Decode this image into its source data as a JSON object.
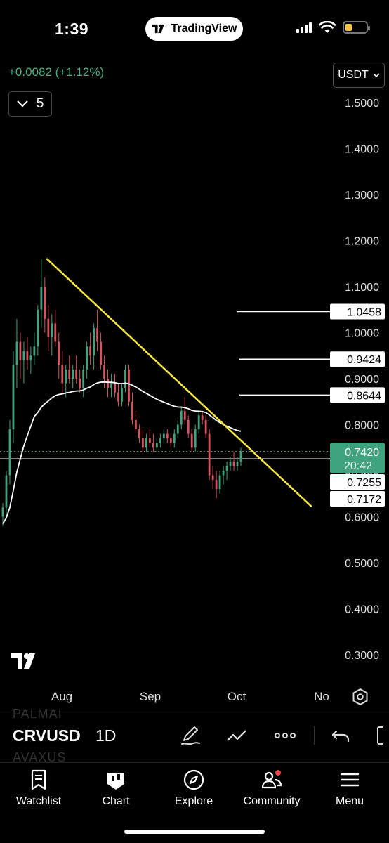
{
  "status_bar": {
    "time": "1:39",
    "app_pill": "TradingView"
  },
  "header": {
    "change_text": "+0.0082 (+1.12%)",
    "indicator_count": "5",
    "currency": "USDT"
  },
  "chart_data": {
    "type": "candlestick",
    "symbol": "CRVUSDT",
    "interval": "1D",
    "y_ticks": [
      "1.5000",
      "1.4000",
      "1.3000",
      "1.2000",
      "1.1000",
      "1.0000",
      "0.9000",
      "0.8000",
      "0.7000",
      "0.6000",
      "0.5000",
      "0.4000",
      "0.3000"
    ],
    "y_range": [
      0.3,
      1.5
    ],
    "x_ticks": [
      "Aug",
      "Sep",
      "Oct",
      "No"
    ],
    "current_price": "0.7420",
    "countdown": "20:42",
    "price_labels": [
      "1.0458",
      "0.9424",
      "0.8644",
      "0.7255",
      "0.7172"
    ],
    "horizontal_levels": [
      1.0458,
      0.9424,
      0.8644,
      0.7255
    ],
    "trendline": {
      "from": {
        "date": "2023-07-30",
        "price": 1.16
      },
      "to": {
        "date": "2023-10-15",
        "price": 0.623
      }
    },
    "moving_average_color": "#ffffff",
    "trendline_color": "#f5e642",
    "up_color": "#3fa37d",
    "down_color": "#d9525e",
    "candles": [
      {
        "o": 0.6,
        "h": 0.63,
        "l": 0.58,
        "c": 0.62
      },
      {
        "o": 0.62,
        "h": 0.7,
        "l": 0.6,
        "c": 0.69
      },
      {
        "o": 0.69,
        "h": 0.81,
        "l": 0.67,
        "c": 0.79
      },
      {
        "o": 0.79,
        "h": 0.96,
        "l": 0.76,
        "c": 0.93
      },
      {
        "o": 0.93,
        "h": 1.03,
        "l": 0.88,
        "c": 0.98
      },
      {
        "o": 0.98,
        "h": 1.0,
        "l": 0.9,
        "c": 0.94
      },
      {
        "o": 0.94,
        "h": 0.98,
        "l": 0.89,
        "c": 0.96
      },
      {
        "o": 0.96,
        "h": 0.99,
        "l": 0.92,
        "c": 0.94
      },
      {
        "o": 0.94,
        "h": 0.97,
        "l": 0.91,
        "c": 0.95
      },
      {
        "o": 0.95,
        "h": 1.0,
        "l": 0.93,
        "c": 0.97
      },
      {
        "o": 0.97,
        "h": 1.06,
        "l": 0.95,
        "c": 1.05
      },
      {
        "o": 1.05,
        "h": 1.16,
        "l": 1.01,
        "c": 1.1
      },
      {
        "o": 1.1,
        "h": 1.12,
        "l": 1.0,
        "c": 1.03
      },
      {
        "o": 1.03,
        "h": 1.06,
        "l": 0.96,
        "c": 0.99
      },
      {
        "o": 0.99,
        "h": 1.04,
        "l": 0.95,
        "c": 1.02
      },
      {
        "o": 1.02,
        "h": 1.05,
        "l": 0.97,
        "c": 0.98
      },
      {
        "o": 0.98,
        "h": 1.0,
        "l": 0.9,
        "c": 0.93
      },
      {
        "o": 0.93,
        "h": 0.96,
        "l": 0.87,
        "c": 0.89
      },
      {
        "o": 0.89,
        "h": 0.93,
        "l": 0.86,
        "c": 0.92
      },
      {
        "o": 0.92,
        "h": 0.95,
        "l": 0.89,
        "c": 0.9
      },
      {
        "o": 0.9,
        "h": 0.93,
        "l": 0.88,
        "c": 0.92
      },
      {
        "o": 0.92,
        "h": 0.95,
        "l": 0.89,
        "c": 0.9
      },
      {
        "o": 0.9,
        "h": 0.92,
        "l": 0.87,
        "c": 0.88
      },
      {
        "o": 0.88,
        "h": 0.93,
        "l": 0.86,
        "c": 0.92
      },
      {
        "o": 0.92,
        "h": 0.98,
        "l": 0.9,
        "c": 0.97
      },
      {
        "o": 0.97,
        "h": 1.0,
        "l": 0.93,
        "c": 0.95
      },
      {
        "o": 0.95,
        "h": 1.02,
        "l": 0.92,
        "c": 1.01
      },
      {
        "o": 1.01,
        "h": 1.05,
        "l": 0.96,
        "c": 0.98
      },
      {
        "o": 0.98,
        "h": 1.0,
        "l": 0.92,
        "c": 0.93
      },
      {
        "o": 0.93,
        "h": 0.95,
        "l": 0.88,
        "c": 0.9
      },
      {
        "o": 0.9,
        "h": 0.92,
        "l": 0.86,
        "c": 0.88
      },
      {
        "o": 0.88,
        "h": 0.91,
        "l": 0.86,
        "c": 0.89
      },
      {
        "o": 0.89,
        "h": 0.91,
        "l": 0.86,
        "c": 0.87
      },
      {
        "o": 0.87,
        "h": 0.89,
        "l": 0.84,
        "c": 0.85
      },
      {
        "o": 0.85,
        "h": 0.89,
        "l": 0.84,
        "c": 0.88
      },
      {
        "o": 0.88,
        "h": 0.93,
        "l": 0.87,
        "c": 0.92
      },
      {
        "o": 0.92,
        "h": 0.93,
        "l": 0.84,
        "c": 0.85
      },
      {
        "o": 0.85,
        "h": 0.87,
        "l": 0.8,
        "c": 0.81
      },
      {
        "o": 0.81,
        "h": 0.83,
        "l": 0.78,
        "c": 0.79
      },
      {
        "o": 0.79,
        "h": 0.8,
        "l": 0.76,
        "c": 0.77
      },
      {
        "o": 0.77,
        "h": 0.79,
        "l": 0.74,
        "c": 0.75
      },
      {
        "o": 0.75,
        "h": 0.78,
        "l": 0.74,
        "c": 0.77
      },
      {
        "o": 0.77,
        "h": 0.79,
        "l": 0.75,
        "c": 0.76
      },
      {
        "o": 0.76,
        "h": 0.78,
        "l": 0.74,
        "c": 0.75
      },
      {
        "o": 0.75,
        "h": 0.77,
        "l": 0.74,
        "c": 0.76
      },
      {
        "o": 0.76,
        "h": 0.78,
        "l": 0.75,
        "c": 0.77
      },
      {
        "o": 0.77,
        "h": 0.79,
        "l": 0.76,
        "c": 0.78
      },
      {
        "o": 0.78,
        "h": 0.79,
        "l": 0.76,
        "c": 0.77
      },
      {
        "o": 0.77,
        "h": 0.78,
        "l": 0.75,
        "c": 0.76
      },
      {
        "o": 0.76,
        "h": 0.79,
        "l": 0.75,
        "c": 0.78
      },
      {
        "o": 0.78,
        "h": 0.81,
        "l": 0.77,
        "c": 0.8
      },
      {
        "o": 0.8,
        "h": 0.84,
        "l": 0.79,
        "c": 0.83
      },
      {
        "o": 0.83,
        "h": 0.86,
        "l": 0.8,
        "c": 0.81
      },
      {
        "o": 0.81,
        "h": 0.82,
        "l": 0.77,
        "c": 0.78
      },
      {
        "o": 0.78,
        "h": 0.79,
        "l": 0.74,
        "c": 0.75
      },
      {
        "o": 0.75,
        "h": 0.8,
        "l": 0.74,
        "c": 0.79
      },
      {
        "o": 0.79,
        "h": 0.83,
        "l": 0.78,
        "c": 0.82
      },
      {
        "o": 0.82,
        "h": 0.83,
        "l": 0.8,
        "c": 0.81
      },
      {
        "o": 0.81,
        "h": 0.82,
        "l": 0.77,
        "c": 0.78
      },
      {
        "o": 0.78,
        "h": 0.79,
        "l": 0.68,
        "c": 0.69
      },
      {
        "o": 0.69,
        "h": 0.71,
        "l": 0.66,
        "c": 0.68
      },
      {
        "o": 0.68,
        "h": 0.7,
        "l": 0.64,
        "c": 0.66
      },
      {
        "o": 0.66,
        "h": 0.7,
        "l": 0.65,
        "c": 0.69
      },
      {
        "o": 0.69,
        "h": 0.71,
        "l": 0.67,
        "c": 0.7
      },
      {
        "o": 0.7,
        "h": 0.72,
        "l": 0.68,
        "c": 0.71
      },
      {
        "o": 0.71,
        "h": 0.73,
        "l": 0.7,
        "c": 0.72
      },
      {
        "o": 0.72,
        "h": 0.74,
        "l": 0.7,
        "c": 0.71
      },
      {
        "o": 0.71,
        "h": 0.73,
        "l": 0.7,
        "c": 0.72
      },
      {
        "o": 0.72,
        "h": 0.75,
        "l": 0.71,
        "c": 0.742
      }
    ]
  },
  "toolbar": {
    "ghost_top": "PALMAI",
    "symbol": "CRVUSD",
    "interval": "1D",
    "ghost_bottom": "AVAXUS"
  },
  "nav": [
    {
      "label": "Watchlist"
    },
    {
      "label": "Chart"
    },
    {
      "label": "Explore"
    },
    {
      "label": "Community"
    },
    {
      "label": "Menu"
    }
  ]
}
